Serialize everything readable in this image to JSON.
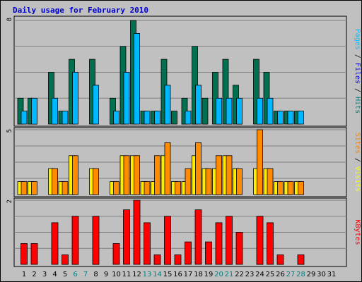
{
  "chart_data": {
    "type": "bar",
    "title": "Daily usage for February 2010",
    "categories": [
      "1",
      "2",
      "3",
      "4",
      "5",
      "6",
      "7",
      "8",
      "9",
      "10",
      "11",
      "12",
      "13",
      "14",
      "15",
      "16",
      "17",
      "18",
      "19",
      "20",
      "21",
      "22",
      "23",
      "24",
      "25",
      "26",
      "27",
      "28",
      "29",
      "30",
      "31"
    ],
    "weekend_days": [
      "6",
      "7",
      "13",
      "14",
      "20",
      "21",
      "27",
      "28"
    ],
    "panels": [
      {
        "name": "pages-files-hits",
        "ymax": 8,
        "ymax_label": "8",
        "legend": [
          {
            "text": "Pages",
            "color": "#00bfff"
          },
          {
            "text": " / ",
            "color": "#000000"
          },
          {
            "text": "Files",
            "color": "#0000ff"
          },
          {
            "text": " / ",
            "color": "#000000"
          },
          {
            "text": "Hits",
            "color": "#008080"
          }
        ],
        "series": [
          {
            "name": "Hits",
            "color": "#007050",
            "values": [
              2,
              2,
              0,
              4,
              1,
              5,
              0,
              5,
              0,
              2,
              6,
              8,
              1,
              1,
              5,
              1,
              2,
              6,
              2,
              4,
              5,
              3,
              0,
              5,
              4,
              1,
              1,
              1,
              0,
              0,
              0
            ]
          },
          {
            "name": "Pages",
            "color": "#00b8ff",
            "values": [
              1,
              2,
              0,
              2,
              1,
              4,
              0,
              3,
              0,
              1,
              4,
              7,
              1,
              1,
              3,
              0,
              1,
              3,
              0,
              2,
              2,
              2,
              0,
              2,
              2,
              1,
              1,
              1,
              0,
              0,
              0
            ]
          }
        ]
      },
      {
        "name": "sites-visits",
        "ymax": 5,
        "ymax_label": "5",
        "legend": [
          {
            "text": "Sites",
            "color": "#ff8000"
          },
          {
            "text": " / ",
            "color": "#000000"
          },
          {
            "text": "Visits",
            "color": "#ffff00"
          }
        ],
        "series": [
          {
            "name": "Visits",
            "color": "#ffee00",
            "values": [
              1,
              1,
              0,
              2,
              1,
              3,
              0,
              2,
              0,
              1,
              3,
              3,
              1,
              1,
              3,
              1,
              1,
              3,
              2,
              2,
              3,
              2,
              0,
              2,
              2,
              1,
              1,
              1,
              0,
              0,
              0
            ]
          },
          {
            "name": "Sites",
            "color": "#ff8c00",
            "values": [
              1,
              1,
              0,
              2,
              1,
              3,
              0,
              2,
              0,
              1,
              3,
              3,
              1,
              3,
              4,
              1,
              2,
              4,
              2,
              3,
              3,
              2,
              0,
              5,
              2,
              1,
              1,
              1,
              0,
              0,
              0
            ]
          }
        ]
      },
      {
        "name": "kbytes",
        "ymax": 2,
        "ymax_label": "2",
        "legend": [
          {
            "text": "KBytes",
            "color": "#ff0000"
          }
        ],
        "series": [
          {
            "name": "KBytes",
            "color": "#ff0000",
            "values": [
              0.65,
              0.65,
              0,
              1.3,
              0.3,
              1.5,
              0,
              1.5,
              0,
              0.65,
              1.7,
              2.0,
              1.3,
              0.3,
              1.5,
              0.3,
              0.7,
              1.7,
              0.7,
              1.3,
              1.5,
              1.0,
              0,
              1.5,
              1.3,
              0.3,
              0,
              0.3,
              0,
              0,
              0
            ]
          }
        ]
      }
    ]
  }
}
